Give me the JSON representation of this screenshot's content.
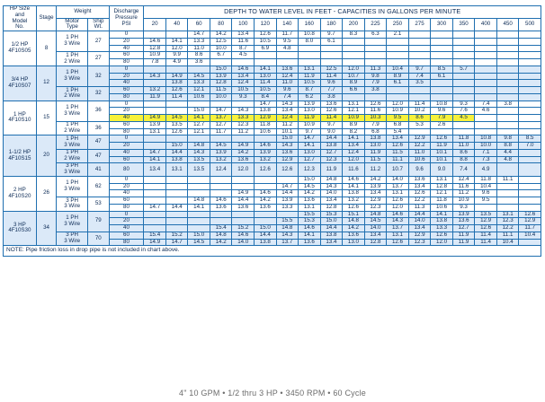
{
  "headers": {
    "hp_model": [
      "HP Size",
      "and",
      "Model",
      "No."
    ],
    "stage": "Stage",
    "weight": "Weight",
    "motor_type": [
      "Motor",
      "Type"
    ],
    "ship_wt": [
      "Ship",
      "Wt."
    ],
    "discharge": [
      "Discharge",
      "Pressure",
      "PSI"
    ],
    "depth_title": "DEPTH TO WATER LEVEL IN FEET - CAPACITIES IN GALLONS PER MINUTE",
    "depths": [
      "20",
      "40",
      "60",
      "80",
      "100",
      "120",
      "140",
      "160",
      "180",
      "200",
      "225",
      "250",
      "275",
      "300",
      "350",
      "400",
      "450",
      "500"
    ]
  },
  "pressures": [
    "0",
    "20",
    "40",
    "60",
    "80"
  ],
  "models": [
    {
      "hp": "1/2 HP",
      "model": "4F10S05",
      "stage": "8",
      "motors": [
        {
          "phase": "1 PH",
          "wire": "3 Wire",
          "wt": "27"
        },
        {
          "phase": "1 PH",
          "wire": "2 Wire",
          "wt": "27"
        }
      ],
      "rows": [
        [
          "",
          "",
          "14.7",
          "14.2",
          "13.4",
          "12.6",
          "11.7",
          "10.8",
          "9.7",
          "8.3",
          "6.3",
          "2.1",
          "",
          "",
          "",
          "",
          "",
          ""
        ],
        [
          "14.6",
          "14.1",
          "13.3",
          "12.5",
          "11.6",
          "10.5",
          "9.5",
          "8.0",
          "6.1",
          "",
          "",
          "",
          "",
          "",
          "",
          "",
          "",
          ""
        ],
        [
          "12.8",
          "12.0",
          "11.0",
          "10.0",
          "8.7",
          "6.9",
          "4.8",
          "",
          "",
          "",
          "",
          "",
          "",
          "",
          "",
          "",
          "",
          ""
        ],
        [
          "10.9",
          "9.9",
          "8.6",
          "6.7",
          "4.5",
          "",
          "",
          "",
          "",
          "",
          "",
          "",
          "",
          "",
          "",
          "",
          "",
          ""
        ],
        [
          "7.8",
          "4.9",
          "3.6",
          "",
          "",
          "",
          "",
          "",
          "",
          "",
          "",
          "",
          "",
          "",
          "",
          "",
          "",
          ""
        ]
      ]
    },
    {
      "hp": "3/4 HP",
      "model": "4F10S07",
      "stage": "12",
      "motors": [
        {
          "phase": "1 PH",
          "wire": "3 Wire",
          "wt": "32"
        },
        {
          "phase": "1 PH",
          "wire": "2 Wire",
          "wt": "32"
        }
      ],
      "rows": [
        [
          "",
          "",
          "",
          "15.0",
          "14.6",
          "14.1",
          "13.6",
          "13.1",
          "12.5",
          "12.0",
          "11.3",
          "10.4",
          "9.7",
          "8.5",
          "5.7",
          "",
          "",
          ""
        ],
        [
          "14.3",
          "14.9",
          "14.5",
          "13.9",
          "13.4",
          "13.0",
          "12.4",
          "11.9",
          "11.4",
          "10.7",
          "9.8",
          "8.9",
          "7.4",
          "6.1",
          "",
          "",
          "",
          ""
        ],
        [
          "",
          "13.8",
          "13.3",
          "12.8",
          "12.4",
          "11.4",
          "11.0",
          "10.5",
          "9.6",
          "8.9",
          "7.9",
          "6.1",
          "3.5",
          "",
          "",
          "",
          "",
          ""
        ],
        [
          "13.2",
          "12.6",
          "12.1",
          "11.5",
          "10.5",
          "10.5",
          "9.6",
          "8.7",
          "7.7",
          "6.6",
          "3.8",
          "",
          "",
          "",
          "",
          "",
          "",
          ""
        ],
        [
          "11.9",
          "11.4",
          "10.6",
          "10.0",
          "9.3",
          "8.4",
          "7.4",
          "6.2",
          "3.8",
          "",
          "",
          "",
          "",
          "",
          "",
          "",
          "",
          ""
        ]
      ]
    },
    {
      "hp": "1 HP",
      "model": "4F10S10",
      "stage": "15",
      "motors": [
        {
          "phase": "1 PH",
          "wire": "3 Wire",
          "wt": "36"
        },
        {
          "phase": "1 PH",
          "wire": "2 Wire",
          "wt": "36"
        }
      ],
      "rows": [
        [
          "",
          "",
          "",
          "",
          "",
          "14.7",
          "14.3",
          "13.9",
          "13.6",
          "13.1",
          "12.6",
          "12.0",
          "11.4",
          "10.8",
          "9.3",
          "7.4",
          "3.8",
          ""
        ],
        [
          "",
          "",
          "15.0",
          "14.7",
          "14.3",
          "13.8",
          "13.4",
          "13.0",
          "12.6",
          "12.1",
          "11.6",
          "10.9",
          "10.2",
          "9.6",
          "7.6",
          "4.6",
          "",
          ""
        ],
        [
          "14.9",
          "14.5",
          "14.1",
          "13.7",
          "13.3",
          "12.9",
          "12.4",
          "11.9",
          "11.4",
          "10.9",
          "10.3",
          "9.5",
          "8.6",
          "7.9",
          "4.5",
          "",
          "",
          ""
        ],
        [
          "13.9",
          "13.5",
          "12.7",
          "12.7",
          "12.3",
          "11.8",
          "11.2",
          "10.9",
          "9.7",
          "8.9",
          "7.9",
          "6.8",
          "5.3",
          "2.6",
          "",
          "",
          "",
          ""
        ],
        [
          "13.1",
          "12.6",
          "12.1",
          "11.7",
          "11.2",
          "10.6",
          "10.1",
          "9.7",
          "9.0",
          "8.2",
          "6.8",
          "5.4",
          "",
          "",
          "",
          "",
          "",
          ""
        ]
      ]
    },
    {
      "hp": "1-1/2 HP",
      "model": "4F10S15",
      "stage": "20",
      "motors": [
        {
          "phase": "1 PH",
          "wire": "3 Wire",
          "wt": "47"
        },
        {
          "phase": "1 PH",
          "wire": "2 Wire",
          "wt": "47"
        },
        {
          "phase": "3 PH",
          "wire": "3 Wire",
          "wt": "41"
        }
      ],
      "rows": [
        [
          "",
          "",
          "",
          "",
          "",
          "",
          "15.0",
          "14.7",
          "14.4",
          "14.1",
          "13.8",
          "13.4",
          "12.9",
          "12.6",
          "11.8",
          "10.8",
          "9.8",
          "8.5"
        ],
        [
          "",
          "15.0",
          "14.8",
          "14.5",
          "14.9",
          "14.6",
          "14.3",
          "14.1",
          "13.8",
          "13.4",
          "13.0",
          "12.6",
          "12.2",
          "11.9",
          "11.0",
          "10.0",
          "8.8",
          "7.0"
        ],
        [
          "14.7",
          "14.4",
          "14.3",
          "13.9",
          "14.2",
          "13.9",
          "13.6",
          "13.0",
          "12.7",
          "12.4",
          "11.9",
          "11.5",
          "11.0",
          "10.1",
          "8.6",
          "7.1",
          "4.4",
          ""
        ],
        [
          "14.1",
          "13.8",
          "13.5",
          "13.2",
          "13.6",
          "13.2",
          "12.9",
          "12.7",
          "12.3",
          "12.0",
          "11.5",
          "11.1",
          "10.6",
          "10.1",
          "8.8",
          "7.3",
          "4.8",
          ""
        ],
        [
          "13.4",
          "13.1",
          "13.5",
          "12.4",
          "12.0",
          "12.6",
          "12.6",
          "12.3",
          "11.9",
          "11.6",
          "11.2",
          "10.7",
          "9.6",
          "9.0",
          "7.4",
          "4.9",
          "",
          ""
        ]
      ]
    },
    {
      "hp": "2 HP",
      "model": "4F10S20",
      "stage": "26",
      "motors": [
        {
          "phase": "1 PH",
          "wire": "3 Wire",
          "wt": "62"
        },
        {
          "phase": "3 PH",
          "wire": "3 Wire",
          "wt": "53"
        }
      ],
      "rows": [
        [
          "",
          "",
          "",
          "",
          "",
          "",
          "",
          "15.0",
          "14.8",
          "14.6",
          "14.2",
          "14.0",
          "13.6",
          "13.1",
          "12.4",
          "11.8",
          "11.1",
          ""
        ],
        [
          "",
          "",
          "",
          "",
          "",
          "",
          "14.7",
          "14.5",
          "14.3",
          "14.1",
          "13.9",
          "13.7",
          "13.4",
          "12.8",
          "11.6",
          "10.4",
          "",
          ""
        ],
        [
          "",
          "",
          "",
          "",
          "14.9",
          "14.6",
          "14.4",
          "14.2",
          "14.0",
          "13.8",
          "13.4",
          "13.1",
          "12.6",
          "12.1",
          "11.2",
          "9.6",
          "",
          ""
        ],
        [
          "",
          "",
          "14.8",
          "14.6",
          "14.4",
          "14.2",
          "13.9",
          "13.6",
          "13.4",
          "13.2",
          "12.9",
          "12.6",
          "12.2",
          "11.8",
          "10.9",
          "9.5",
          "",
          ""
        ],
        [
          "14.7",
          "14.4",
          "14.1",
          "13.6",
          "13.6",
          "13.6",
          "13.3",
          "13.1",
          "12.8",
          "12.6",
          "12.3",
          "12.0",
          "11.3",
          "10.6",
          "9.3",
          "",
          "",
          ""
        ]
      ]
    },
    {
      "hp": "3 HP",
      "model": "4F10S30",
      "stage": "34",
      "motors": [
        {
          "phase": "1 PH",
          "wire": "3 Wire",
          "wt": "79"
        },
        {
          "phase": "3 PH",
          "wire": "3 Wire",
          "wt": "70"
        }
      ],
      "rows": [
        [
          "",
          "",
          "",
          "",
          "",
          "",
          "",
          "15.5",
          "15.3",
          "15.1",
          "14.8",
          "14.6",
          "14.4",
          "14.1",
          "13.9",
          "13.5",
          "13.1",
          "12.6"
        ],
        [
          "",
          "",
          "",
          "",
          "",
          "",
          "15.5",
          "15.3",
          "15.0",
          "14.8",
          "14.5",
          "14.3",
          "14.0",
          "13.8",
          "13.6",
          "12.9",
          "12.3",
          "12.9"
        ],
        [
          "",
          "",
          "",
          "15.4",
          "15.2",
          "15.0",
          "14.8",
          "14.6",
          "14.4",
          "14.2",
          "14.0",
          "13.7",
          "13.4",
          "13.3",
          "12.7",
          "12.6",
          "12.2",
          "11.7"
        ],
        [
          "15.4",
          "15.2",
          "15.0",
          "14.8",
          "14.6",
          "14.4",
          "14.3",
          "14.1",
          "13.8",
          "13.6",
          "13.4",
          "13.1",
          "12.9",
          "12.6",
          "11.9",
          "11.4",
          "11.1",
          "10.4"
        ],
        [
          "14.9",
          "14.7",
          "14.5",
          "14.2",
          "14.0",
          "13.8",
          "13.7",
          "13.6",
          "13.4",
          "13.0",
          "12.8",
          "12.6",
          "12.3",
          "12.0",
          "11.9",
          "11.4",
          "10.4",
          ""
        ]
      ]
    }
  ],
  "highlight": {
    "model_index": 2,
    "row_index": 2,
    "color": "#f7f13a"
  },
  "colors": {
    "grid": "#1f6fb0",
    "band": "#dbe9f8",
    "text": "#0b2a55"
  },
  "note": "NOTE: Pipe friction loss in drop pipe is not included in chart above.",
  "footer": "4\" 10 GPM • 1/2 thru 3 HP • 3450 RPM • 60 Cycle"
}
